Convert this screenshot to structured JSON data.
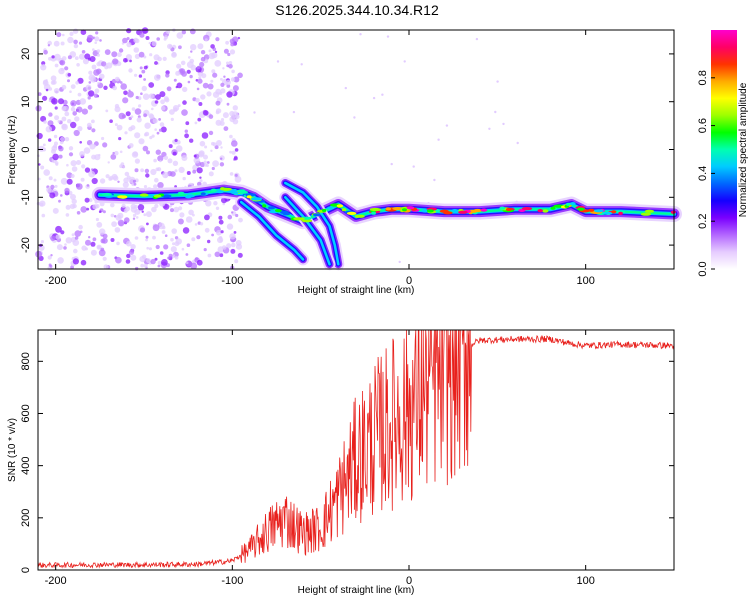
{
  "title": "S126.2025.344.10.34.R12",
  "chart_data": [
    {
      "type": "heatmap",
      "name": "spectrogram",
      "xlabel": "Height of straight line (km)",
      "ylabel": "Frequency (Hz)",
      "xlim": [
        -210,
        150
      ],
      "ylim": [
        -25,
        25
      ],
      "xticks": [
        -200,
        -100,
        0,
        100
      ],
      "yticks": [
        -20,
        -10,
        0,
        10,
        20
      ],
      "colorbar": {
        "label": "Normalized spectral amplitude",
        "range": [
          0,
          1
        ],
        "ticks": [
          0.0,
          0.2,
          0.4,
          0.6,
          0.8
        ],
        "colors": [
          "#ffffff",
          "#e6ccff",
          "#b366ff",
          "#7a00ff",
          "#1400ff",
          "#0066ff",
          "#00ccff",
          "#00ffb0",
          "#00ff00",
          "#9dff00",
          "#ffff00",
          "#ffaa00",
          "#ff3300",
          "#ff0066",
          "#ff00cc"
        ]
      },
      "tone_track": [
        [
          -175,
          -9.5
        ],
        [
          -150,
          -9.8
        ],
        [
          -125,
          -9.5
        ],
        [
          -105,
          -8.5
        ],
        [
          -95,
          -9
        ],
        [
          -88,
          -10
        ],
        [
          -80,
          -12
        ],
        [
          -60,
          -15
        ],
        [
          -40,
          -11.5
        ],
        [
          -30,
          -14
        ],
        [
          -20,
          -13
        ],
        [
          -10,
          -12.5
        ],
        [
          0,
          -12.5
        ],
        [
          20,
          -13
        ],
        [
          40,
          -13
        ],
        [
          60,
          -12.5
        ],
        [
          80,
          -12.5
        ],
        [
          92,
          -11.5
        ],
        [
          100,
          -13
        ],
        [
          120,
          -13
        ],
        [
          150,
          -13.5
        ]
      ],
      "branches": [
        [
          [
            -95,
            -11
          ],
          [
            -85,
            -14
          ],
          [
            -75,
            -18
          ],
          [
            -65,
            -21
          ],
          [
            -60,
            -23
          ]
        ],
        [
          [
            -70,
            -7
          ],
          [
            -60,
            -9
          ],
          [
            -52,
            -12
          ],
          [
            -45,
            -16
          ],
          [
            -42,
            -20
          ],
          [
            -40,
            -24
          ]
        ],
        [
          [
            -70,
            -10
          ],
          [
            -60,
            -14
          ],
          [
            -50,
            -19
          ],
          [
            -45,
            -24
          ]
        ]
      ]
    },
    {
      "type": "line",
      "name": "snr",
      "xlabel": "Height of straight line (km)",
      "ylabel": "SNR (10 * v/v)",
      "xlim": [
        -210,
        150
      ],
      "ylim": [
        0,
        920
      ],
      "xticks": [
        -200,
        -100,
        0,
        100
      ],
      "yticks": [
        0,
        200,
        400,
        600,
        800
      ],
      "color": "#e8201c",
      "series": [
        {
          "name": "SNR",
          "x": [
            -210,
            -180,
            -150,
            -120,
            -100,
            -90,
            -80,
            -70,
            -60,
            -50,
            -40,
            -30,
            -20,
            -10,
            0,
            10,
            20,
            30,
            40,
            60,
            80,
            90,
            100,
            120,
            150
          ],
          "values": [
            18,
            20,
            20,
            22,
            35,
            80,
            150,
            200,
            140,
            160,
            280,
            420,
            500,
            560,
            620,
            700,
            780,
            850,
            880,
            885,
            885,
            870,
            860,
            865,
            860
          ]
        }
      ]
    }
  ]
}
